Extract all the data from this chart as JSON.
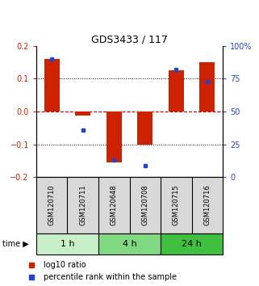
{
  "title": "GDS3433 / 117",
  "samples": [
    "GSM120710",
    "GSM120711",
    "GSM120648",
    "GSM120708",
    "GSM120715",
    "GSM120716"
  ],
  "time_groups": [
    {
      "label": "1 h",
      "color": "#c8f0c8",
      "cols": [
        0,
        1
      ]
    },
    {
      "label": "4 h",
      "color": "#80d880",
      "cols": [
        2,
        3
      ]
    },
    {
      "label": "24 h",
      "color": "#40c040",
      "cols": [
        4,
        5
      ]
    }
  ],
  "log10_ratio": [
    0.16,
    -0.012,
    -0.155,
    -0.1,
    0.125,
    0.15
  ],
  "percentile_rank": [
    90,
    36,
    13,
    9,
    82,
    73
  ],
  "ylim_left": [
    -0.2,
    0.2
  ],
  "ylim_right": [
    0,
    100
  ],
  "yticks_left": [
    -0.2,
    -0.1,
    0.0,
    0.1,
    0.2
  ],
  "yticks_right": [
    0,
    25,
    50,
    75,
    100
  ],
  "bar_color": "#cc2200",
  "dot_color": "#2244cc",
  "zero_line_color": "#cc0000",
  "grid_color": "#000000",
  "left_tick_color": "#cc2200",
  "right_tick_color": "#2244cc",
  "bg_color": "#ffffff",
  "bar_width": 0.5
}
